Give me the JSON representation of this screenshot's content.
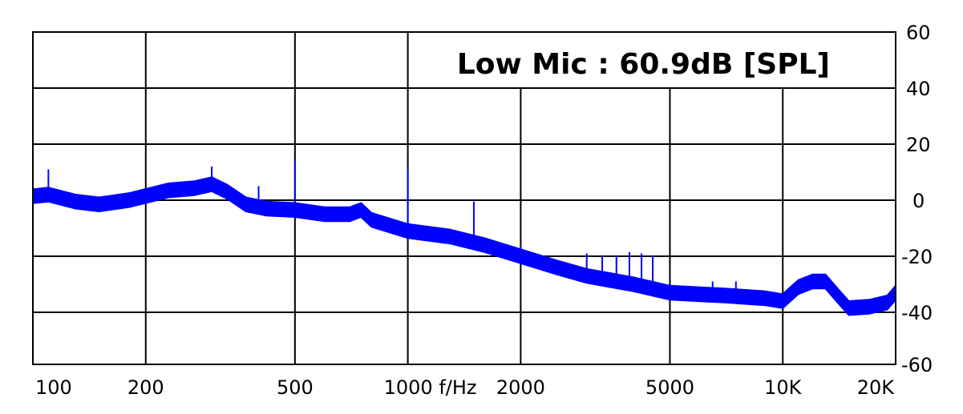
{
  "chart_data": {
    "type": "line",
    "title": "Low Mic : 60.9dB [SPL]",
    "xlabel": "f/Hz",
    "ylabel": "",
    "x_scale": "log",
    "xlim": [
      100,
      20000
    ],
    "ylim": [
      -60,
      60
    ],
    "x_ticks": [
      {
        "value": 100,
        "label": "100"
      },
      {
        "value": 200,
        "label": "200"
      },
      {
        "value": 500,
        "label": "500"
      },
      {
        "value": 1000,
        "label": "1000 f/Hz"
      },
      {
        "value": 2000,
        "label": "2000"
      },
      {
        "value": 5000,
        "label": "5000"
      },
      {
        "value": 10000,
        "label": "10K"
      },
      {
        "value": 20000,
        "label": "20K"
      }
    ],
    "y_ticks": [
      {
        "value": 60,
        "label": "60"
      },
      {
        "value": 40,
        "label": "40"
      },
      {
        "value": 20,
        "label": "20"
      },
      {
        "value": 0,
        "label": "0"
      },
      {
        "value": -20,
        "label": "-20"
      },
      {
        "value": -40,
        "label": "-40"
      },
      {
        "value": -60,
        "label": "-60"
      }
    ],
    "grid": true,
    "series_color": "#0000ff",
    "series": [
      {
        "points": [
          [
            100,
            1.4
          ],
          [
            110,
            2
          ],
          [
            130,
            -0.5
          ],
          [
            150,
            -1.5
          ],
          [
            180,
            0
          ],
          [
            200,
            1.5
          ],
          [
            230,
            3.5
          ],
          [
            270,
            4.3
          ],
          [
            300,
            5.7
          ],
          [
            330,
            3
          ],
          [
            370,
            -1.5
          ],
          [
            420,
            -3
          ],
          [
            500,
            -3.5
          ],
          [
            600,
            -5
          ],
          [
            700,
            -5
          ],
          [
            750,
            -3.5
          ],
          [
            800,
            -7
          ],
          [
            1000,
            -11
          ],
          [
            1300,
            -13
          ],
          [
            1600,
            -16
          ],
          [
            2000,
            -20
          ],
          [
            2500,
            -24
          ],
          [
            3000,
            -27
          ],
          [
            4000,
            -30
          ],
          [
            5000,
            -33
          ],
          [
            7000,
            -34
          ],
          [
            9000,
            -35
          ],
          [
            10000,
            -36
          ],
          [
            11000,
            -31
          ],
          [
            12000,
            -29
          ],
          [
            13000,
            -29
          ],
          [
            14000,
            -34
          ],
          [
            15000,
            -38.5
          ],
          [
            17000,
            -38
          ],
          [
            19000,
            -36.5
          ],
          [
            20000,
            -33
          ]
        ],
        "spread_db": 2.5,
        "spikes": [
          [
            100,
            7
          ],
          [
            110,
            11
          ],
          [
            300,
            12
          ],
          [
            400,
            5
          ],
          [
            500,
            14
          ],
          [
            1000,
            11
          ],
          [
            1500,
            -0.5
          ],
          [
            2000,
            -16
          ],
          [
            3000,
            -19
          ],
          [
            3300,
            -20
          ],
          [
            3600,
            -20
          ],
          [
            3900,
            -18.5
          ],
          [
            4200,
            -19
          ],
          [
            4500,
            -20
          ],
          [
            6500,
            -29
          ],
          [
            7500,
            -29
          ]
        ]
      }
    ]
  }
}
